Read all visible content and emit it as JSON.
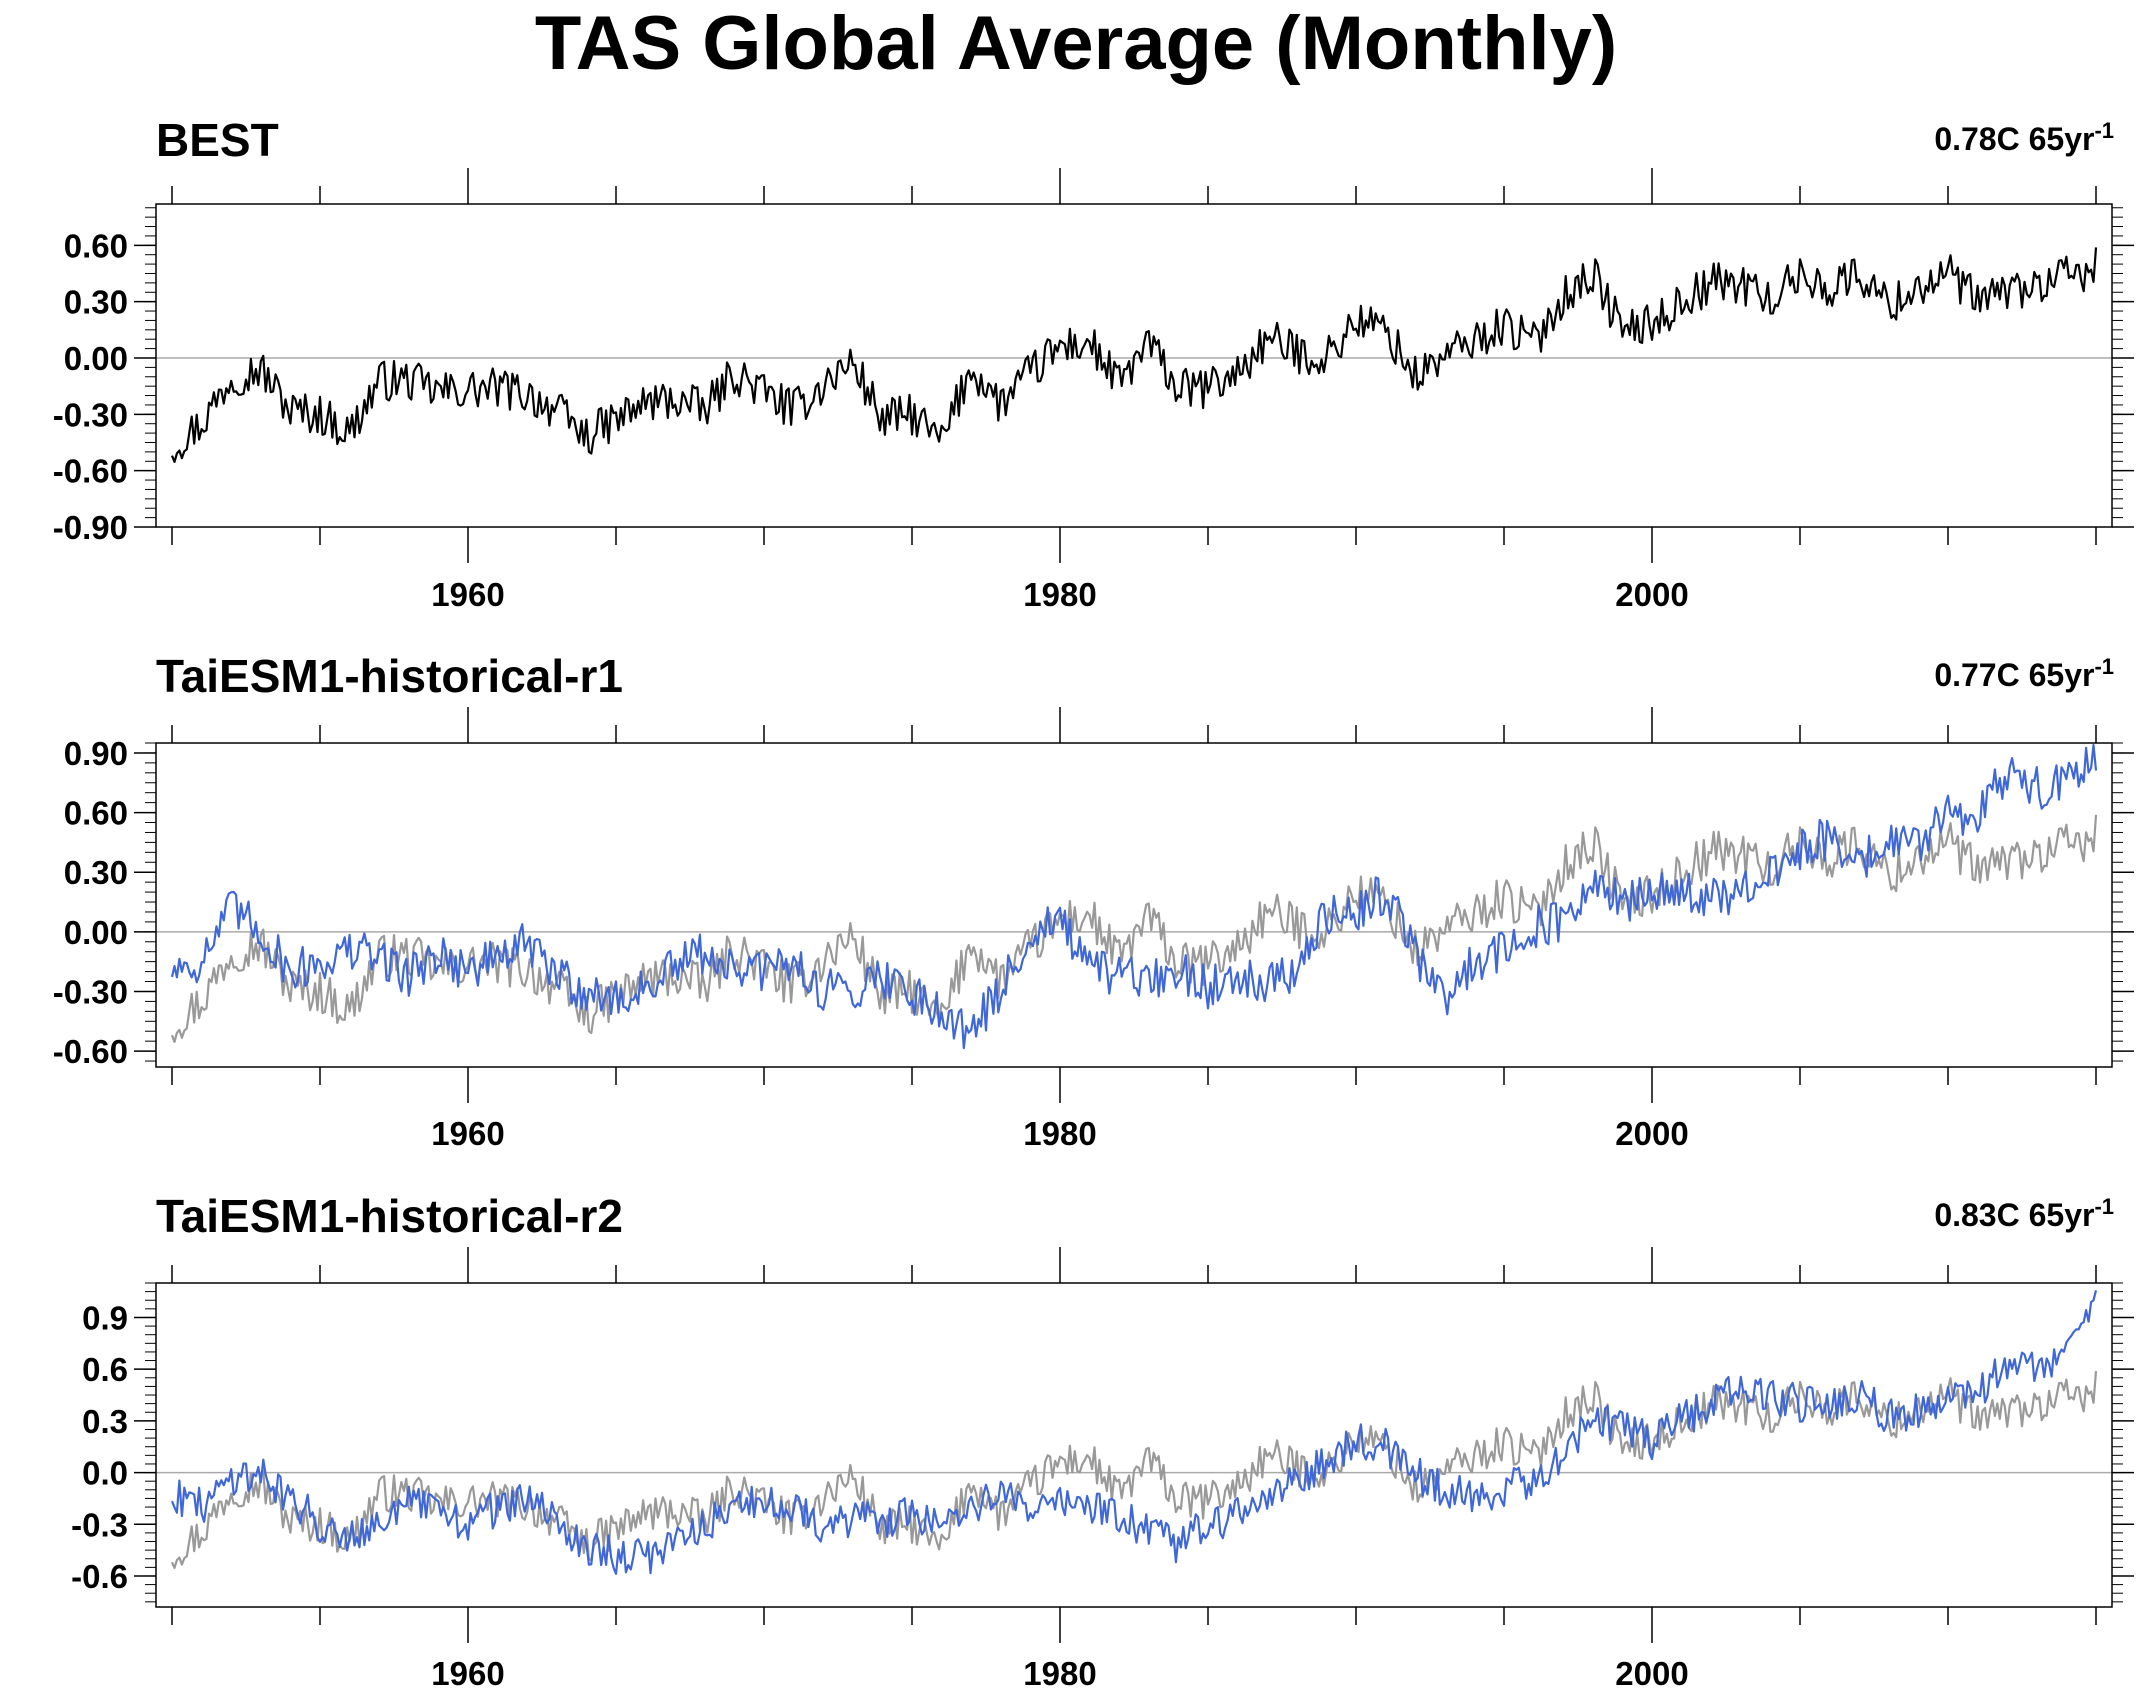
{
  "title": "TAS Global Average (Monthly)",
  "colors": {
    "reference": "#000000",
    "reference_overlay": "#999999",
    "model": "#3f67d8",
    "zero_line": "#aaaaaa"
  },
  "chart_data": [
    {
      "type": "line",
      "title": "BEST",
      "trend_label": "0.78C 65yr",
      "trend_label_sup": "-1",
      "xlim": [
        1950,
        2015
      ],
      "ylim": [
        -0.9,
        0.82
      ],
      "x_ticks": [
        1960,
        1980,
        2000
      ],
      "x_tick_labels": [
        "1960",
        "1980",
        "2000"
      ],
      "y_ticks": [
        -0.9,
        -0.6,
        -0.3,
        0.0,
        0.3,
        0.6
      ],
      "y_tick_labels": [
        "-0.90",
        "-0.60",
        "-0.30",
        "0.00",
        "0.30",
        "0.60"
      ],
      "series": [
        {
          "style": "reference",
          "x": [
            1950,
            1951,
            1952,
            1953,
            1954,
            1955,
            1956,
            1957,
            1958,
            1959,
            1960,
            1961,
            1962,
            1963,
            1964,
            1965,
            1966,
            1967,
            1968,
            1969,
            1970,
            1971,
            1972,
            1973,
            1974,
            1975,
            1976,
            1977,
            1978,
            1979,
            1980,
            1981,
            1982,
            1983,
            1984,
            1985,
            1986,
            1987,
            1988,
            1989,
            1990,
            1991,
            1992,
            1993,
            1994,
            1995,
            1996,
            1997,
            1998,
            1999,
            2000,
            2001,
            2002,
            2003,
            2004,
            2005,
            2006,
            2007,
            2008,
            2009,
            2010,
            2011,
            2012,
            2013,
            2014,
            2015
          ],
          "values": [
            -0.47,
            -0.35,
            -0.1,
            -0.06,
            -0.28,
            -0.3,
            -0.4,
            -0.12,
            -0.12,
            -0.18,
            -0.17,
            -0.16,
            -0.19,
            -0.28,
            -0.42,
            -0.33,
            -0.24,
            -0.22,
            -0.28,
            -0.08,
            -0.18,
            -0.28,
            -0.14,
            -0.02,
            -0.33,
            -0.3,
            -0.45,
            -0.05,
            -0.25,
            -0.08,
            0.06,
            0.08,
            -0.14,
            0.08,
            -0.17,
            -0.16,
            -0.08,
            0.1,
            0.03,
            0.0,
            0.2,
            0.15,
            -0.1,
            0.01,
            0.09,
            0.18,
            0.08,
            0.33,
            0.45,
            0.15,
            0.18,
            0.3,
            0.4,
            0.4,
            0.31,
            0.44,
            0.37,
            0.45,
            0.28,
            0.38,
            0.45,
            0.3,
            0.36,
            0.38,
            0.43,
            0.48
          ]
        }
      ]
    },
    {
      "type": "line",
      "title": "TaiESM1-historical-r1",
      "trend_label": "0.77C 65yr",
      "trend_label_sup": "-1",
      "xlim": [
        1950,
        2015
      ],
      "ylim": [
        -0.68,
        0.95
      ],
      "x_ticks": [
        1960,
        1980,
        2000
      ],
      "x_tick_labels": [
        "1960",
        "1980",
        "2000"
      ],
      "y_ticks": [
        -0.6,
        -0.3,
        0.0,
        0.3,
        0.6,
        0.9
      ],
      "y_tick_labels": [
        "-0.60",
        "-0.30",
        "0.00",
        "0.30",
        "0.60",
        "0.90"
      ],
      "series": [
        {
          "style": "reference_overlay",
          "x": [
            1950,
            1951,
            1952,
            1953,
            1954,
            1955,
            1956,
            1957,
            1958,
            1959,
            1960,
            1961,
            1962,
            1963,
            1964,
            1965,
            1966,
            1967,
            1968,
            1969,
            1970,
            1971,
            1972,
            1973,
            1974,
            1975,
            1976,
            1977,
            1978,
            1979,
            1980,
            1981,
            1982,
            1983,
            1984,
            1985,
            1986,
            1987,
            1988,
            1989,
            1990,
            1991,
            1992,
            1993,
            1994,
            1995,
            1996,
            1997,
            1998,
            1999,
            2000,
            2001,
            2002,
            2003,
            2004,
            2005,
            2006,
            2007,
            2008,
            2009,
            2010,
            2011,
            2012,
            2013,
            2014,
            2015
          ],
          "values": [
            -0.47,
            -0.35,
            -0.1,
            -0.06,
            -0.28,
            -0.3,
            -0.4,
            -0.12,
            -0.12,
            -0.18,
            -0.17,
            -0.16,
            -0.19,
            -0.28,
            -0.42,
            -0.33,
            -0.24,
            -0.22,
            -0.28,
            -0.08,
            -0.18,
            -0.28,
            -0.14,
            -0.02,
            -0.33,
            -0.3,
            -0.45,
            -0.05,
            -0.25,
            -0.08,
            0.06,
            0.08,
            -0.14,
            0.08,
            -0.17,
            -0.16,
            -0.08,
            0.1,
            0.03,
            0.0,
            0.2,
            0.15,
            -0.1,
            0.01,
            0.09,
            0.18,
            0.08,
            0.33,
            0.45,
            0.15,
            0.18,
            0.3,
            0.4,
            0.4,
            0.31,
            0.44,
            0.37,
            0.45,
            0.28,
            0.38,
            0.45,
            0.3,
            0.36,
            0.38,
            0.43,
            0.48
          ]
        },
        {
          "style": "model",
          "x": [
            1950,
            1951,
            1952,
            1953,
            1954,
            1955,
            1956,
            1957,
            1958,
            1959,
            1960,
            1961,
            1962,
            1963,
            1964,
            1965,
            1966,
            1967,
            1968,
            1969,
            1970,
            1971,
            1972,
            1973,
            1974,
            1975,
            1976,
            1977,
            1978,
            1979,
            1980,
            1981,
            1982,
            1983,
            1984,
            1985,
            1986,
            1987,
            1988,
            1989,
            1990,
            1991,
            1992,
            1993,
            1994,
            1995,
            1996,
            1997,
            1998,
            1999,
            2000,
            2001,
            2002,
            2003,
            2004,
            2005,
            2006,
            2007,
            2008,
            2009,
            2010,
            2011,
            2012,
            2013,
            2014,
            2015
          ],
          "values": [
            -0.18,
            -0.15,
            0.12,
            0.0,
            -0.2,
            -0.15,
            -0.1,
            -0.12,
            -0.22,
            -0.1,
            -0.2,
            -0.12,
            -0.06,
            -0.22,
            -0.3,
            -0.35,
            -0.28,
            -0.18,
            -0.1,
            -0.2,
            -0.2,
            -0.15,
            -0.3,
            -0.28,
            -0.22,
            -0.3,
            -0.4,
            -0.5,
            -0.3,
            0.0,
            0.05,
            -0.2,
            -0.22,
            -0.25,
            -0.2,
            -0.28,
            -0.2,
            -0.25,
            -0.2,
            0.08,
            0.1,
            0.2,
            -0.1,
            -0.35,
            -0.15,
            -0.08,
            0.02,
            0.05,
            0.22,
            0.15,
            0.18,
            0.22,
            0.16,
            0.18,
            0.28,
            0.4,
            0.48,
            0.35,
            0.45,
            0.45,
            0.6,
            0.58,
            0.8,
            0.72,
            0.75,
            0.88
          ]
        }
      ]
    },
    {
      "type": "line",
      "title": "TaiESM1-historical-r2",
      "trend_label": "0.83C 65yr",
      "trend_label_sup": "-1",
      "xlim": [
        1950,
        2015
      ],
      "ylim": [
        -0.78,
        1.1
      ],
      "x_ticks": [
        1960,
        1980,
        2000
      ],
      "x_tick_labels": [
        "1960",
        "1980",
        "2000"
      ],
      "y_ticks": [
        -0.6,
        -0.3,
        0.0,
        0.3,
        0.6,
        0.9
      ],
      "y_tick_labels": [
        "-0.6",
        "-0.3",
        "0.0",
        "0.3",
        "0.6",
        "0.9"
      ],
      "series": [
        {
          "style": "reference_overlay",
          "x": [
            1950,
            1951,
            1952,
            1953,
            1954,
            1955,
            1956,
            1957,
            1958,
            1959,
            1960,
            1961,
            1962,
            1963,
            1964,
            1965,
            1966,
            1967,
            1968,
            1969,
            1970,
            1971,
            1972,
            1973,
            1974,
            1975,
            1976,
            1977,
            1978,
            1979,
            1980,
            1981,
            1982,
            1983,
            1984,
            1985,
            1986,
            1987,
            1988,
            1989,
            1990,
            1991,
            1992,
            1993,
            1994,
            1995,
            1996,
            1997,
            1998,
            1999,
            2000,
            2001,
            2002,
            2003,
            2004,
            2005,
            2006,
            2007,
            2008,
            2009,
            2010,
            2011,
            2012,
            2013,
            2014,
            2015
          ],
          "values": [
            -0.47,
            -0.35,
            -0.1,
            -0.06,
            -0.28,
            -0.3,
            -0.4,
            -0.12,
            -0.12,
            -0.18,
            -0.17,
            -0.16,
            -0.19,
            -0.28,
            -0.42,
            -0.33,
            -0.24,
            -0.22,
            -0.28,
            -0.08,
            -0.18,
            -0.28,
            -0.14,
            -0.02,
            -0.33,
            -0.3,
            -0.45,
            -0.05,
            -0.25,
            -0.08,
            0.06,
            0.08,
            -0.14,
            0.08,
            -0.17,
            -0.16,
            -0.08,
            0.1,
            0.03,
            0.0,
            0.2,
            0.15,
            -0.1,
            0.01,
            0.09,
            0.18,
            0.08,
            0.33,
            0.45,
            0.15,
            0.18,
            0.3,
            0.4,
            0.4,
            0.31,
            0.44,
            0.37,
            0.45,
            0.28,
            0.38,
            0.45,
            0.3,
            0.36,
            0.38,
            0.43,
            0.48
          ]
        },
        {
          "style": "model",
          "x": [
            1950,
            1951,
            1952,
            1953,
            1954,
            1955,
            1956,
            1957,
            1958,
            1959,
            1960,
            1961,
            1962,
            1963,
            1964,
            1965,
            1966,
            1967,
            1968,
            1969,
            1970,
            1971,
            1972,
            1973,
            1974,
            1975,
            1976,
            1977,
            1978,
            1979,
            1980,
            1981,
            1982,
            1983,
            1984,
            1985,
            1986,
            1987,
            1988,
            1989,
            1990,
            1991,
            1992,
            1993,
            1994,
            1995,
            1996,
            1997,
            1998,
            1999,
            2000,
            2001,
            2002,
            2003,
            2004,
            2005,
            2006,
            2007,
            2008,
            2009,
            2010,
            2011,
            2012,
            2013,
            2014,
            2015
          ],
          "values": [
            -0.12,
            -0.2,
            -0.02,
            0.0,
            -0.15,
            -0.3,
            -0.35,
            -0.28,
            -0.18,
            -0.22,
            -0.3,
            -0.2,
            -0.15,
            -0.3,
            -0.42,
            -0.48,
            -0.5,
            -0.38,
            -0.3,
            -0.18,
            -0.2,
            -0.18,
            -0.3,
            -0.28,
            -0.28,
            -0.25,
            -0.28,
            -0.2,
            -0.15,
            -0.18,
            -0.15,
            -0.2,
            -0.25,
            -0.35,
            -0.42,
            -0.3,
            -0.25,
            -0.15,
            -0.05,
            0.05,
            0.2,
            0.15,
            0.0,
            -0.1,
            -0.15,
            -0.1,
            -0.05,
            0.1,
            0.3,
            0.28,
            0.18,
            0.3,
            0.4,
            0.5,
            0.45,
            0.4,
            0.38,
            0.45,
            0.32,
            0.35,
            0.42,
            0.48,
            0.6,
            0.62,
            0.7,
            0.95
          ]
        }
      ]
    }
  ]
}
